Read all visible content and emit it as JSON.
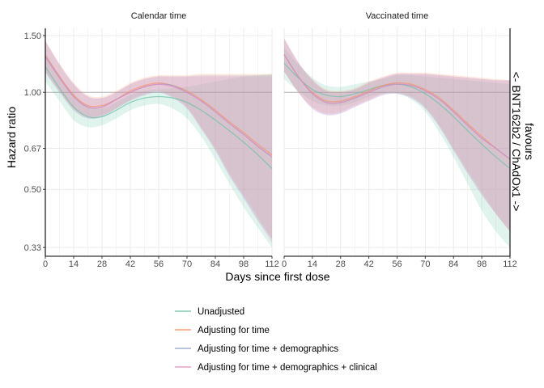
{
  "chart_data": {
    "type": "line",
    "ylabel": "Hazard ratio",
    "xlabel": "Days since first dose",
    "right_label": [
      "favours",
      "<- BNT162b2 / ChAdOx1 ->"
    ],
    "x_ticks": [
      0,
      14,
      28,
      42,
      56,
      70,
      84,
      98,
      112
    ],
    "y_ticks": [
      0.33,
      0.5,
      0.67,
      1.0,
      1.5
    ],
    "y_tick_labels": [
      "0.33",
      "0.50",
      "0.67",
      "1.00",
      "1.50"
    ],
    "y_scale": "log",
    "xlim": [
      0,
      112
    ],
    "ylim": [
      0.31,
      1.58
    ],
    "reference_line": 1.0,
    "grid": true,
    "legend_position": "bottom",
    "series_styles": [
      {
        "name": "Unadjusted",
        "color": "#66c2a5"
      },
      {
        "name": "Adjusting for time",
        "color": "#fc8d62"
      },
      {
        "name": "Adjusting for time + demographics",
        "color": "#8da0cb"
      },
      {
        "name": "Adjusting for time + demographics + clinical",
        "color": "#e78ac3"
      }
    ],
    "panels": [
      {
        "title": "Calendar time",
        "x": [
          0,
          7,
          14,
          21,
          28,
          35,
          42,
          49,
          56,
          63,
          70,
          77,
          84,
          91,
          98,
          105,
          112
        ],
        "series": [
          {
            "name": "Unadjusted",
            "values": [
              1.2,
              1.03,
              0.9,
              0.84,
              0.84,
              0.88,
              0.93,
              0.96,
              0.97,
              0.96,
              0.93,
              0.88,
              0.82,
              0.76,
              0.7,
              0.64,
              0.58
            ],
            "lower": [
              1.08,
              0.94,
              0.82,
              0.78,
              0.79,
              0.83,
              0.88,
              0.91,
              0.92,
              0.89,
              0.83,
              0.73,
              0.62,
              0.52,
              0.44,
              0.38,
              0.33
            ],
            "upper": [
              1.33,
              1.13,
              0.99,
              0.91,
              0.89,
              0.93,
              0.98,
              1.01,
              1.02,
              1.03,
              1.04,
              1.06,
              1.08,
              1.1,
              1.12,
              1.13,
              1.14
            ]
          },
          {
            "name": "Adjusting for time",
            "values": [
              1.3,
              1.12,
              0.98,
              0.91,
              0.91,
              0.95,
              1.01,
              1.05,
              1.07,
              1.05,
              1.01,
              0.95,
              0.88,
              0.81,
              0.75,
              0.69,
              0.64
            ],
            "lower": [
              1.16,
              1.01,
              0.89,
              0.84,
              0.85,
              0.89,
              0.95,
              0.99,
              1.01,
              0.97,
              0.9,
              0.78,
              0.67,
              0.56,
              0.48,
              0.41,
              0.35
            ],
            "upper": [
              1.45,
              1.23,
              1.07,
              0.98,
              0.97,
              1.01,
              1.07,
              1.11,
              1.13,
              1.13,
              1.13,
              1.14,
              1.14,
              1.14,
              1.14,
              1.14,
              1.14
            ]
          },
          {
            "name": "Adjusting for time + demographics",
            "values": [
              1.29,
              1.11,
              0.97,
              0.9,
              0.9,
              0.95,
              1.0,
              1.04,
              1.06,
              1.05,
              1.0,
              0.94,
              0.87,
              0.8,
              0.74,
              0.68,
              0.63
            ],
            "lower": [
              1.15,
              1.0,
              0.88,
              0.83,
              0.84,
              0.89,
              0.94,
              0.98,
              1.0,
              0.96,
              0.89,
              0.77,
              0.66,
              0.55,
              0.47,
              0.4,
              0.35
            ],
            "upper": [
              1.44,
              1.22,
              1.06,
              0.97,
              0.96,
              1.0,
              1.06,
              1.1,
              1.12,
              1.12,
              1.12,
              1.13,
              1.13,
              1.13,
              1.13,
              1.13,
              1.13
            ]
          },
          {
            "name": "Adjusting for time + demographics + clinical",
            "values": [
              1.29,
              1.11,
              0.97,
              0.9,
              0.9,
              0.95,
              1.0,
              1.04,
              1.06,
              1.04,
              1.0,
              0.94,
              0.87,
              0.8,
              0.74,
              0.68,
              0.63
            ],
            "lower": [
              1.15,
              1.0,
              0.88,
              0.83,
              0.84,
              0.89,
              0.94,
              0.98,
              1.0,
              0.96,
              0.89,
              0.77,
              0.66,
              0.55,
              0.47,
              0.4,
              0.34
            ],
            "upper": [
              1.44,
              1.22,
              1.06,
              0.97,
              0.96,
              1.0,
              1.06,
              1.1,
              1.12,
              1.12,
              1.12,
              1.12,
              1.12,
              1.12,
              1.12,
              1.12,
              1.12
            ]
          }
        ]
      },
      {
        "title": "Vaccinated time",
        "x": [
          0,
          7,
          14,
          21,
          28,
          35,
          42,
          49,
          56,
          63,
          70,
          77,
          84,
          91,
          98,
          105,
          112
        ],
        "series": [
          {
            "name": "Unadjusted",
            "values": [
              1.23,
              1.11,
              1.02,
              0.98,
              0.97,
              0.99,
              1.02,
              1.05,
              1.06,
              1.04,
              0.99,
              0.92,
              0.84,
              0.76,
              0.69,
              0.63,
              0.58
            ],
            "lower": [
              1.1,
              1.01,
              0.94,
              0.91,
              0.91,
              0.93,
              0.97,
              0.99,
              0.99,
              0.95,
              0.87,
              0.75,
              0.63,
              0.52,
              0.43,
              0.37,
              0.33
            ],
            "upper": [
              1.38,
              1.22,
              1.11,
              1.05,
              1.04,
              1.06,
              1.08,
              1.1,
              1.13,
              1.13,
              1.12,
              1.11,
              1.1,
              1.09,
              1.08,
              1.07,
              1.06
            ]
          },
          {
            "name": "Adjusting for time",
            "values": [
              1.31,
              1.12,
              1.0,
              0.94,
              0.94,
              0.97,
              1.01,
              1.05,
              1.07,
              1.06,
              1.02,
              0.96,
              0.88,
              0.8,
              0.73,
              0.67,
              0.62
            ],
            "lower": [
              1.16,
              1.0,
              0.9,
              0.86,
              0.87,
              0.91,
              0.95,
              0.99,
              1.0,
              0.97,
              0.9,
              0.79,
              0.67,
              0.57,
              0.49,
              0.42,
              0.37
            ],
            "upper": [
              1.47,
              1.24,
              1.1,
              1.02,
              1.01,
              1.03,
              1.08,
              1.12,
              1.15,
              1.15,
              1.15,
              1.14,
              1.13,
              1.12,
              1.11,
              1.1,
              1.09
            ]
          },
          {
            "name": "Adjusting for time + demographics",
            "values": [
              1.31,
              1.12,
              0.99,
              0.93,
              0.93,
              0.96,
              1.0,
              1.04,
              1.06,
              1.05,
              1.01,
              0.95,
              0.87,
              0.79,
              0.72,
              0.67,
              0.62
            ],
            "lower": [
              1.16,
              1.0,
              0.89,
              0.85,
              0.86,
              0.9,
              0.94,
              0.98,
              0.99,
              0.96,
              0.89,
              0.78,
              0.66,
              0.56,
              0.48,
              0.42,
              0.37
            ],
            "upper": [
              1.47,
              1.24,
              1.09,
              1.01,
              1.0,
              1.02,
              1.07,
              1.11,
              1.14,
              1.14,
              1.14,
              1.13,
              1.12,
              1.11,
              1.1,
              1.09,
              1.09
            ]
          },
          {
            "name": "Adjusting for time + demographics + clinical",
            "values": [
              1.31,
              1.12,
              0.99,
              0.93,
              0.93,
              0.96,
              1.0,
              1.04,
              1.06,
              1.05,
              1.01,
              0.95,
              0.87,
              0.79,
              0.72,
              0.67,
              0.62
            ],
            "lower": [
              1.16,
              1.0,
              0.89,
              0.85,
              0.86,
              0.9,
              0.94,
              0.98,
              0.99,
              0.96,
              0.89,
              0.78,
              0.66,
              0.56,
              0.48,
              0.42,
              0.37
            ],
            "upper": [
              1.47,
              1.24,
              1.09,
              1.01,
              1.0,
              1.02,
              1.07,
              1.11,
              1.14,
              1.14,
              1.14,
              1.13,
              1.12,
              1.11,
              1.1,
              1.09,
              1.09
            ]
          }
        ]
      }
    ]
  }
}
